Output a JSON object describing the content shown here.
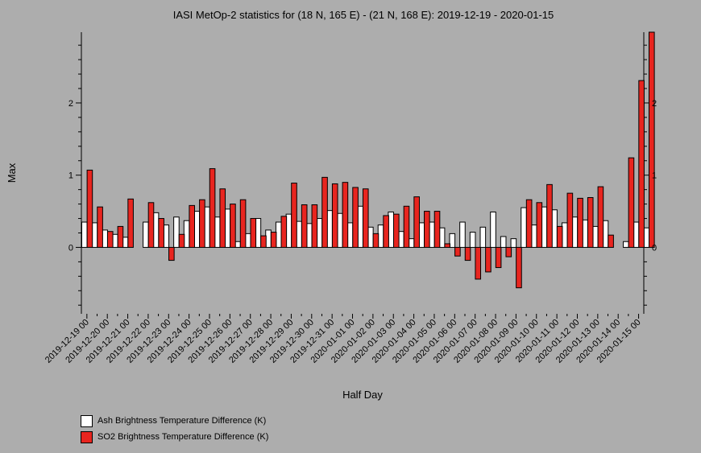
{
  "chart_data": {
    "type": "bar",
    "title": "IASI MetOp-2 statistics for (18 N, 165 E) - (21 N, 168 E): 2019-12-19 - 2020-01-15",
    "xlabel": "Half Day",
    "ylabel": "Max",
    "ylim": [
      -0.92,
      2.98
    ],
    "yticks": [
      0,
      1,
      2
    ],
    "grid": false,
    "legend_position": "bottom-left",
    "x_tick_labels": [
      "2019-12-19 00",
      "2019-12-20 00",
      "2019-12-21 00",
      "2019-12-22 00",
      "2019-12-23 00",
      "2019-12-24 00",
      "2019-12-25 00",
      "2019-12-26 00",
      "2019-12-27 00",
      "2019-12-28 00",
      "2019-12-29 00",
      "2019-12-30 00",
      "2019-12-31 00",
      "2020-01-01 00",
      "2020-01-02 00",
      "2020-01-03 00",
      "2020-01-04 00",
      "2020-01-05 00",
      "2020-01-06 00",
      "2020-01-07 00",
      "2020-01-08 00",
      "2020-01-09 00",
      "2020-01-10 00",
      "2020-01-11 00",
      "2020-01-12 00",
      "2020-01-13 00",
      "2020-01-14 00",
      "2020-01-15 00"
    ],
    "series": [
      {
        "name": "Ash Brightness Temperature Difference (K)",
        "color": "#ffffff",
        "values": [
          0.35,
          0.34,
          0.24,
          0.18,
          0.14,
          null,
          0.35,
          0.48,
          0.31,
          0.42,
          0.37,
          0.5,
          0.56,
          0.42,
          0.53,
          0.08,
          0.19,
          0.4,
          0.24,
          0.35,
          0.46,
          0.36,
          0.33,
          0.4,
          0.51,
          0.47,
          0.34,
          0.57,
          0.28,
          0.31,
          0.49,
          0.22,
          0.12,
          0.34,
          0.35,
          0.27,
          0.19,
          0.35,
          0.21,
          0.28,
          0.49,
          0.15,
          0.12,
          0.55,
          0.31,
          0.56,
          0.52,
          0.34,
          0.42,
          0.38,
          0.29,
          0.37,
          null,
          0.08,
          0.35,
          0.27
        ]
      },
      {
        "name": "SO2 Brightness Temperature Difference (K)",
        "color": "#e8251f",
        "values": [
          1.07,
          0.56,
          0.22,
          0.29,
          0.67,
          null,
          0.62,
          0.4,
          -0.18,
          0.18,
          0.58,
          0.66,
          1.09,
          0.81,
          0.6,
          0.66,
          0.4,
          0.16,
          0.21,
          0.43,
          0.89,
          0.59,
          0.59,
          0.97,
          0.88,
          0.9,
          0.83,
          0.81,
          0.19,
          0.44,
          0.46,
          0.57,
          0.7,
          0.5,
          0.5,
          0.05,
          -0.12,
          -0.18,
          -0.44,
          -0.34,
          -0.28,
          -0.13,
          -0.56,
          0.66,
          0.62,
          0.87,
          0.29,
          0.75,
          0.68,
          0.69,
          0.84,
          0.17,
          null,
          1.24,
          2.31,
          2.98
        ]
      }
    ]
  },
  "legend": {
    "items": [
      {
        "label": "Ash Brightness Temperature Difference (K)",
        "color": "#ffffff"
      },
      {
        "label": "SO2 Brightness Temperature Difference (K)",
        "color": "#e8251f"
      }
    ]
  }
}
